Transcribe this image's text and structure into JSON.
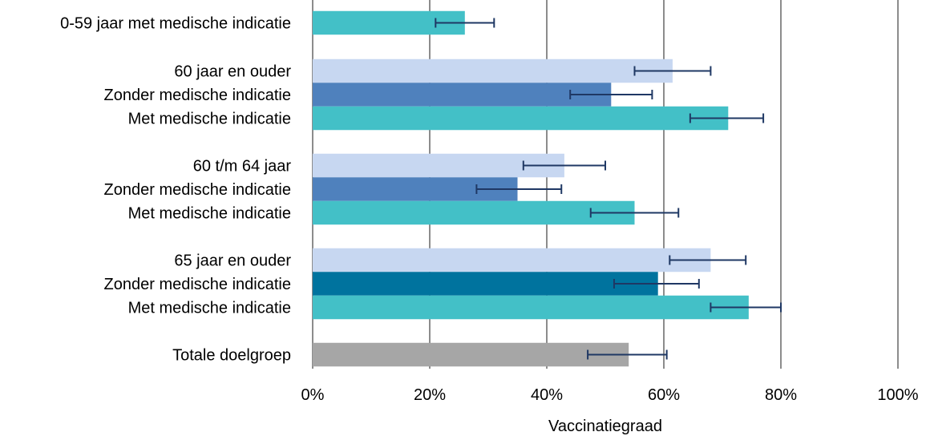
{
  "chart_data": {
    "type": "bar",
    "orientation": "horizontal",
    "xlabel": "Vaccinatiegraad",
    "xlim": [
      0,
      100
    ],
    "x_ticks": [
      0,
      20,
      40,
      60,
      80,
      100
    ],
    "x_tick_labels": [
      "0%",
      "20%",
      "40%",
      "60%",
      "80%",
      "100%"
    ],
    "grid": true,
    "error_bar_color": "#1F3864",
    "bars": [
      {
        "label": "0-59 jaar met medische indicatie",
        "value": 26.0,
        "ci_low": 21.0,
        "ci_high": 31.0,
        "color": "#43C0C7"
      },
      {
        "label": "60 jaar en ouder",
        "value": 61.5,
        "ci_low": 55.0,
        "ci_high": 68.0,
        "color": "#C7D7F1"
      },
      {
        "label": "Zonder medische indicatie",
        "value": 51.0,
        "ci_low": 44.0,
        "ci_high": 58.0,
        "color": "#4F81BD"
      },
      {
        "label": "Met medische indicatie",
        "value": 71.0,
        "ci_low": 64.5,
        "ci_high": 77.0,
        "color": "#43C0C7"
      },
      {
        "label": "60 t/m 64 jaar",
        "value": 43.0,
        "ci_low": 36.0,
        "ci_high": 50.0,
        "color": "#C7D7F1"
      },
      {
        "label": "Zonder medische indicatie",
        "value": 35.0,
        "ci_low": 28.0,
        "ci_high": 42.5,
        "color": "#4F81BD"
      },
      {
        "label": "Met medische indicatie",
        "value": 55.0,
        "ci_low": 47.5,
        "ci_high": 62.5,
        "color": "#43C0C7"
      },
      {
        "label": "65 jaar en ouder",
        "value": 68.0,
        "ci_low": 61.0,
        "ci_high": 74.0,
        "color": "#C7D7F1"
      },
      {
        "label": "Zonder medische indicatie",
        "value": 59.0,
        "ci_low": 51.5,
        "ci_high": 66.0,
        "color": "#00739E"
      },
      {
        "label": "Met medische indicatie",
        "value": 74.5,
        "ci_low": 68.0,
        "ci_high": 80.0,
        "color": "#43C0C7"
      },
      {
        "label": "Totale doelgroep",
        "value": 54.0,
        "ci_low": 47.0,
        "ci_high": 60.5,
        "color": "#A6A6A6"
      }
    ]
  }
}
